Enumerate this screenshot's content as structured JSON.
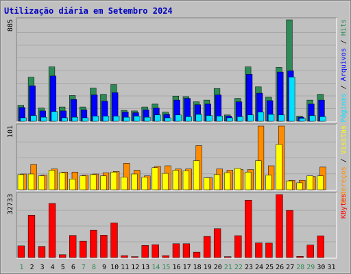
{
  "title": "Utilização diária em Setembro 2024",
  "colors": {
    "background": "#c0c0c0",
    "title": "#0000c0",
    "grid": "#a0a0a0",
    "hits": "#2e8b57",
    "files": "#0000ff",
    "pages": "#00e0ff",
    "visits": "#ffff00",
    "sites": "#ff8c00",
    "kbytes": "#ff0000",
    "weekend_label": "#2e8b57",
    "weekday_label": "#000000"
  },
  "chart_data": [
    {
      "type": "bar",
      "panel": "top",
      "max_label": "885",
      "ylim": [
        0,
        885
      ],
      "legend": [
        {
          "text": "Hits",
          "color": "#2e8b57"
        },
        {
          "text": "Arquivos",
          "color": "#0000ff"
        },
        {
          "text": "Páginas",
          "color": "#00e0ff"
        }
      ],
      "categories": [
        "1",
        "2",
        "3",
        "4",
        "5",
        "6",
        "7",
        "8",
        "9",
        "10",
        "11",
        "12",
        "13",
        "14",
        "15",
        "16",
        "17",
        "18",
        "19",
        "20",
        "21",
        "22",
        "23",
        "24",
        "25",
        "26",
        "27",
        "28",
        "29",
        "30",
        "31"
      ],
      "series": [
        {
          "name": "Hits",
          "values": [
            140,
            385,
            115,
            475,
            125,
            225,
            125,
            290,
            235,
            320,
            95,
            90,
            125,
            150,
            80,
            220,
            215,
            170,
            185,
            285,
            55,
            200,
            475,
            300,
            210,
            470,
            885,
            45,
            185,
            235,
            0
          ]
        },
        {
          "name": "Arquivos",
          "values": [
            120,
            310,
            90,
            395,
            90,
            190,
            100,
            230,
            175,
            250,
            80,
            75,
            100,
            115,
            60,
            185,
            200,
            145,
            150,
            230,
            45,
            170,
            410,
            245,
            180,
            430,
            440,
            35,
            150,
            185,
            0
          ]
        },
        {
          "name": "Páginas",
          "values": [
            30,
            50,
            35,
            85,
            30,
            35,
            30,
            45,
            45,
            45,
            35,
            45,
            35,
            55,
            30,
            55,
            40,
            60,
            50,
            45,
            30,
            40,
            55,
            80,
            60,
            55,
            385,
            25,
            50,
            40,
            0
          ]
        }
      ]
    },
    {
      "type": "bar",
      "panel": "middle",
      "max_label": "101",
      "ylim": [
        0,
        101
      ],
      "legend": [
        {
          "text": "Visitas",
          "color": "#ffff00"
        },
        {
          "text": "Endereços",
          "color": "#ff8c00"
        }
      ],
      "categories": [
        "1",
        "2",
        "3",
        "4",
        "5",
        "6",
        "7",
        "8",
        "9",
        "10",
        "11",
        "12",
        "13",
        "14",
        "15",
        "16",
        "17",
        "18",
        "19",
        "20",
        "21",
        "22",
        "23",
        "24",
        "25",
        "26",
        "27",
        "28",
        "29",
        "30",
        "31"
      ],
      "series": [
        {
          "name": "Visitas",
          "values": [
            24,
            25,
            22,
            31,
            27,
            17,
            22,
            24,
            22,
            28,
            20,
            25,
            20,
            35,
            26,
            31,
            30,
            46,
            19,
            24,
            27,
            34,
            28,
            46,
            23,
            72,
            14,
            11,
            22,
            22,
            0
          ]
        },
        {
          "name": "Endereços",
          "values": [
            25,
            40,
            23,
            33,
            28,
            28,
            23,
            25,
            27,
            29,
            42,
            31,
            22,
            37,
            38,
            33,
            33,
            70,
            19,
            33,
            31,
            32,
            32,
            101,
            38,
            101,
            15,
            15,
            21,
            36,
            0
          ]
        }
      ]
    },
    {
      "type": "bar",
      "panel": "bottom",
      "max_label": "32733",
      "ylim": [
        0,
        32733
      ],
      "legend": [
        {
          "text": "KBytes",
          "color": "#ff0000"
        }
      ],
      "categories": [
        "1",
        "2",
        "3",
        "4",
        "5",
        "6",
        "7",
        "8",
        "9",
        "10",
        "11",
        "12",
        "13",
        "14",
        "15",
        "16",
        "17",
        "18",
        "19",
        "20",
        "21",
        "22",
        "23",
        "24",
        "25",
        "26",
        "27",
        "28",
        "29",
        "30",
        "31"
      ],
      "series": [
        {
          "name": "KBytes",
          "values": [
            6100,
            22000,
            5800,
            28100,
            1500,
            11500,
            8500,
            14200,
            11600,
            18000,
            1000,
            500,
            6300,
            6700,
            1000,
            7200,
            7200,
            2800,
            11000,
            15000,
            500,
            11400,
            29800,
            7600,
            7500,
            32733,
            24500,
            600,
            6500,
            11300,
            0
          ]
        }
      ]
    }
  ],
  "x_axis": {
    "labels": [
      "1",
      "2",
      "3",
      "4",
      "5",
      "6",
      "7",
      "8",
      "9",
      "10",
      "11",
      "12",
      "13",
      "14",
      "15",
      "16",
      "17",
      "18",
      "19",
      "20",
      "21",
      "22",
      "23",
      "24",
      "25",
      "26",
      "27",
      "28",
      "29",
      "30",
      "31"
    ],
    "weekend_days": [
      "1",
      "7",
      "8",
      "14",
      "15",
      "21",
      "22",
      "28",
      "29"
    ]
  }
}
